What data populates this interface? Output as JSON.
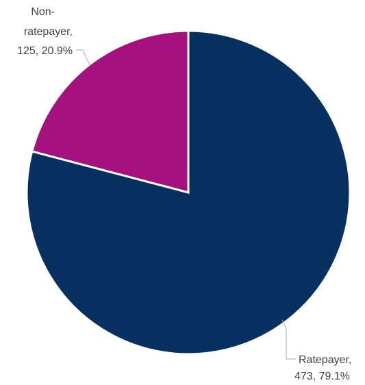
{
  "chart_data": {
    "type": "pie",
    "title": "",
    "slices": [
      {
        "label": "Ratepayer",
        "value": 473,
        "percent": "79.1%",
        "color": "#06305f",
        "label_lines": [
          "Ratepayer,",
          "473, 79.1%"
        ]
      },
      {
        "label": "Non-ratepayer",
        "value": 125,
        "percent": "20.9%",
        "color": "#a5127f",
        "label_lines": [
          "Non-",
          "ratepayer,",
          "125, 20.9%"
        ]
      }
    ],
    "legend": "none",
    "data_labels": "outside with leader lines"
  }
}
